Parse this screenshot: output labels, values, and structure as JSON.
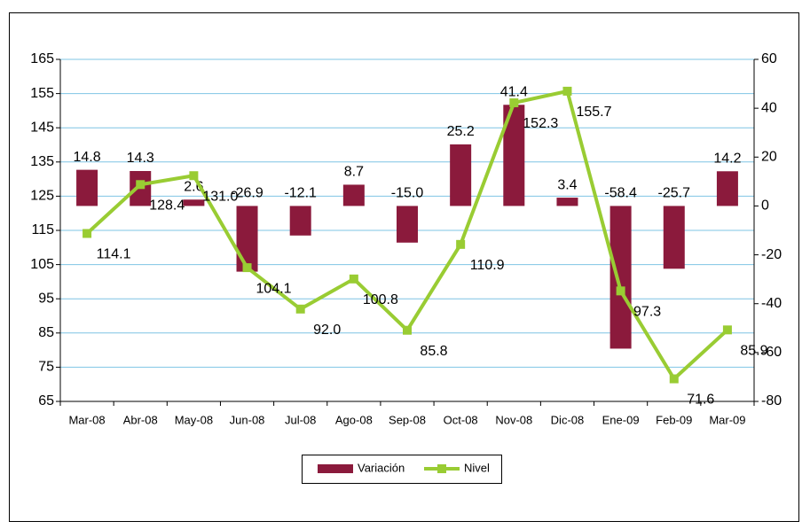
{
  "chart_data": {
    "type": "bar-line",
    "categories": [
      "Mar-08",
      "Abr-08",
      "May-08",
      "Jun-08",
      "Jul-08",
      "Ago-08",
      "Sep-08",
      "Oct-08",
      "Nov-08",
      "Dic-08",
      "Ene-09",
      "Feb-09",
      "Mar-09"
    ],
    "series": [
      {
        "name": "Variación",
        "type": "bar",
        "axis": "y2",
        "color": "#8b1a3c",
        "values": [
          14.8,
          14.3,
          2.6,
          -26.9,
          -12.1,
          8.7,
          -15,
          25.2,
          41.4,
          3.4,
          -58.4,
          -25.7,
          14.2
        ],
        "value_labels": [
          "14.8",
          "14.3",
          "2.6",
          "-26.9",
          "-12.1",
          "8.7",
          "-15.0",
          "25.2",
          "41.4",
          "3.4",
          "-58.4",
          "-25.7",
          "14.2"
        ]
      },
      {
        "name": "Nivel",
        "type": "line",
        "axis": "y",
        "color": "#99cc33",
        "values": [
          114.1,
          128.4,
          131,
          104.1,
          92,
          100.8,
          85.8,
          110.9,
          152.3,
          155.7,
          97.3,
          71.6,
          85.9
        ],
        "value_labels": [
          "114.1",
          "128.4",
          "131.0",
          "104.1",
          "92.0",
          "100.8",
          "85.8",
          "110.9",
          "152.3",
          "155.7",
          "97.3",
          "71.6",
          "85.9"
        ]
      }
    ],
    "ylim": [
      65,
      165
    ],
    "yticks": [
      65,
      75,
      85,
      95,
      105,
      115,
      125,
      135,
      145,
      155,
      165
    ],
    "y2lim": [
      -80,
      60
    ],
    "y2ticks": [
      -80,
      -60,
      -40,
      -20,
      0,
      20,
      40,
      60
    ],
    "grid": true,
    "legend": "bottom"
  }
}
